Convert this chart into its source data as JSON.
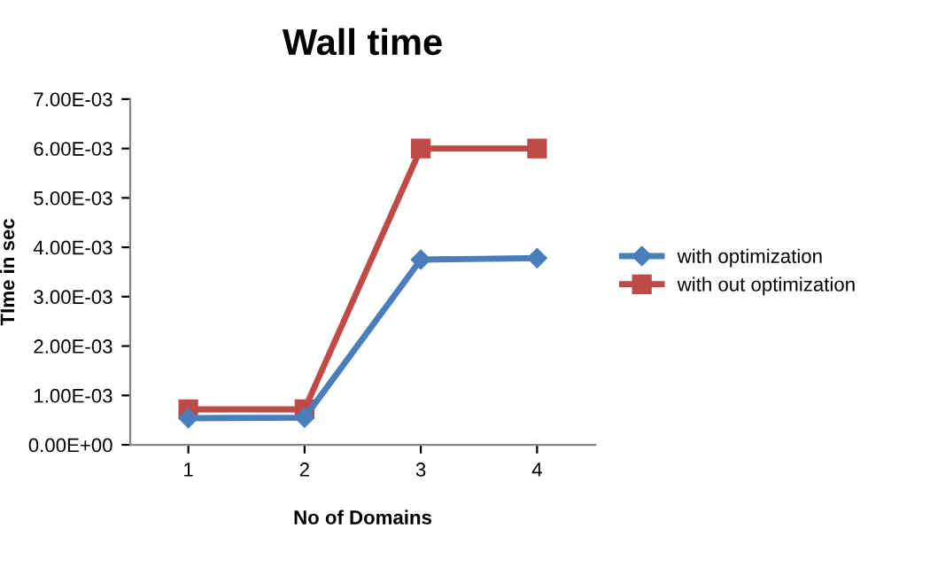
{
  "chart_data": {
    "type": "line",
    "title": "Wall time",
    "xlabel": "No of Domains",
    "ylabel": "TIme in sec",
    "categories": [
      "1",
      "2",
      "3",
      "4"
    ],
    "series": [
      {
        "name": "with optimization",
        "color": "#4a7ebb",
        "marker": "diamond",
        "values": [
          0.00054,
          0.00055,
          0.00375,
          0.00378
        ]
      },
      {
        "name": "with out optimization",
        "color": "#be4b48",
        "marker": "square",
        "values": [
          0.00072,
          0.00072,
          0.006,
          0.006
        ]
      }
    ],
    "ylim": [
      0,
      0.007
    ],
    "yticks": [
      {
        "value": 0,
        "label": "0.00E+00"
      },
      {
        "value": 0.001,
        "label": "1.00E-03"
      },
      {
        "value": 0.002,
        "label": "2.00E-03"
      },
      {
        "value": 0.003,
        "label": "3.00E-03"
      },
      {
        "value": 0.004,
        "label": "4.00E-03"
      },
      {
        "value": 0.005,
        "label": "5.00E-03"
      },
      {
        "value": 0.006,
        "label": "6.00E-03"
      },
      {
        "value": 0.007,
        "label": "7.00E-03"
      }
    ],
    "grid": false,
    "legend": "right",
    "line_style": "solid"
  }
}
